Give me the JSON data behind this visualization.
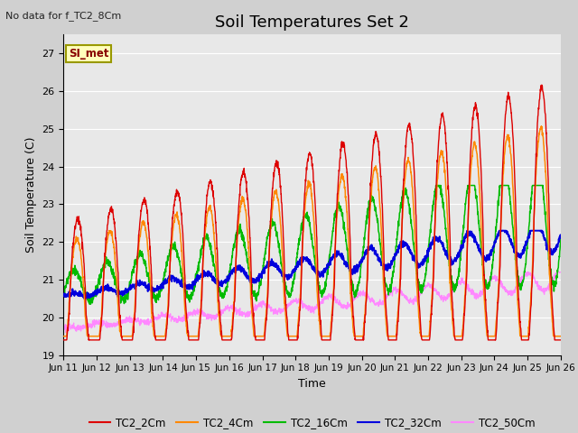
{
  "title": "Soil Temperatures Set 2",
  "xlabel": "Time",
  "ylabel": "Soil Temperature (C)",
  "note": "No data for f_TC2_8Cm",
  "annotation": "SI_met",
  "ylim": [
    19.0,
    27.5
  ],
  "xlim": [
    0,
    15
  ],
  "yticks": [
    19.0,
    20.0,
    21.0,
    22.0,
    23.0,
    24.0,
    25.0,
    26.0,
    27.0
  ],
  "xtick_labels": [
    "Jun 11",
    "Jun 12",
    "Jun 13",
    "Jun 14",
    "Jun 15",
    "Jun 16",
    "Jun 17",
    "Jun 18",
    "Jun 19",
    "Jun 20",
    "Jun 21",
    "Jun 22",
    "Jun 23",
    "Jun 24",
    "Jun 25",
    "Jun 26"
  ],
  "line_colors": {
    "TC2_2Cm": "#dd0000",
    "TC2_4Cm": "#ff8800",
    "TC2_16Cm": "#00bb00",
    "TC2_32Cm": "#0000dd",
    "TC2_50Cm": "#ff88ff"
  },
  "plot_background": "#e8e8e8",
  "grid_color": "#ffffff",
  "title_fontsize": 13,
  "label_fontsize": 9,
  "tick_fontsize": 8
}
